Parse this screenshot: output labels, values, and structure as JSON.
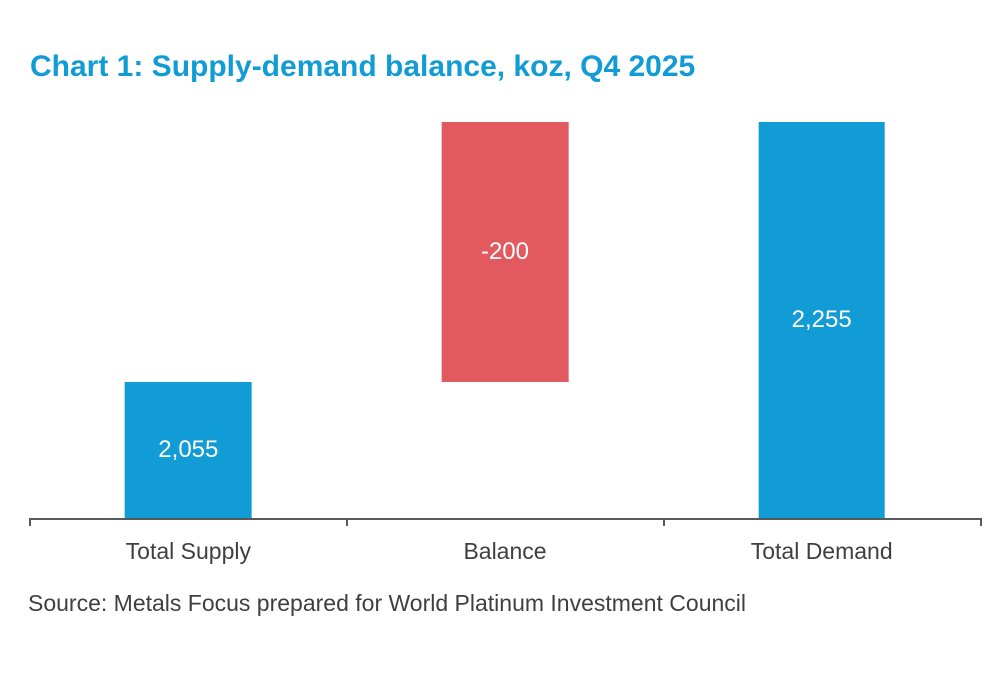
{
  "title": "Chart 1: Supply-demand balance, koz, Q4 2025",
  "source": "Source: Metals Focus prepared for World Platinum Investment Council",
  "colors": {
    "title": "#119CD6",
    "bar_blue": "#119CD6",
    "bar_red": "#E25A60",
    "axis": "#58595B",
    "category_text": "#3F3F3F",
    "value_text": "#FFFFFF",
    "background": "#FFFFFF"
  },
  "chart_data": {
    "type": "bar",
    "subtype": "waterfall",
    "title": "Chart 1: Supply-demand balance, koz, Q4 2025",
    "categories": [
      "Total Supply",
      "Balance",
      "Total Demand"
    ],
    "values": [
      2055,
      -200,
      2255
    ],
    "value_labels": [
      "2,055",
      "-200",
      "2,255"
    ],
    "ylabel": "",
    "xlabel": "",
    "ylim": [
      1950,
      2255
    ],
    "grid": false,
    "legend": false,
    "bars": [
      {
        "category": "Total Supply",
        "from": 1950,
        "to": 2055,
        "color_key": "bar_blue",
        "label": "2,055"
      },
      {
        "category": "Balance",
        "from": 2055,
        "to": 2255,
        "color_key": "bar_red",
        "label": "-200"
      },
      {
        "category": "Total Demand",
        "from": 1950,
        "to": 2255,
        "color_key": "bar_blue",
        "label": "2,255"
      }
    ]
  }
}
